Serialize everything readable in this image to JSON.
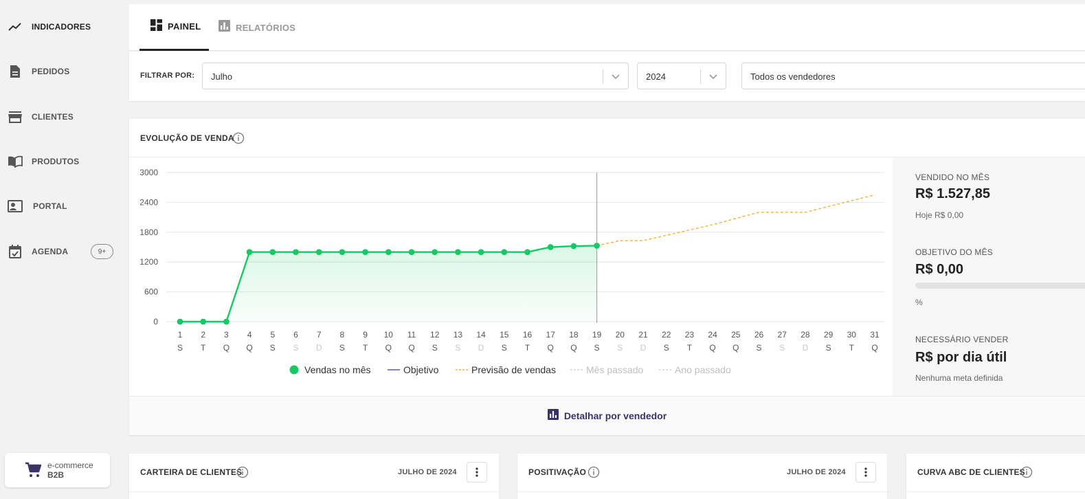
{
  "sidebar": {
    "items": [
      {
        "label": "INDICADORES",
        "icon": "trend-line-icon",
        "active": true
      },
      {
        "label": "PEDIDOS",
        "icon": "document-icon"
      },
      {
        "label": "CLIENTES",
        "icon": "store-icon"
      },
      {
        "label": "PRODUTOS",
        "icon": "book-icon"
      },
      {
        "label": "PORTAL",
        "icon": "contact-card-icon"
      },
      {
        "label": "AGENDA",
        "icon": "calendar-check-icon",
        "badge": "9+"
      }
    ],
    "ecommerce": {
      "line1": "e-commerce",
      "line2": "B2B"
    }
  },
  "tabs": [
    {
      "label": "PAINEL",
      "active": true
    },
    {
      "label": "RELATÓRIOS",
      "active": false
    }
  ],
  "filters": {
    "label": "FILTRAR POR:",
    "month": "Julho",
    "year": "2024",
    "seller": "Todos os vendedores"
  },
  "chart_section": {
    "title": "EVOLUÇÃO DE VENDA",
    "legend": [
      "Vendas no mês",
      "Objetivo",
      "Previsão de vendas",
      "Mês passado",
      "Ano passado"
    ],
    "detail_label": "Detalhar por vendedor"
  },
  "stats": {
    "sold_label": "VENDIDO NO MÊS",
    "sold_value": "R$ 1.527,85",
    "today": "Hoje R$ 0,00",
    "goal_label": "OBJETIVO DO MÊS",
    "goal_value": "R$ 0,00",
    "goal_percent_text": "%",
    "goal_progress": 0,
    "need_label": "NECESSÁRIO VENDER",
    "need_value": "R$ por dia útil",
    "need_sub": "Nenhuma meta definida"
  },
  "cards": [
    {
      "title": "CARTEIRA DE CLIENTES",
      "date": "JULHO DE 2024"
    },
    {
      "title": "POSITIVAÇÃO",
      "date": "JULHO DE 2024"
    },
    {
      "title": "CURVA ABC DE CLIENTES"
    }
  ],
  "colors": {
    "sales": "#17c964",
    "forecast": "#f5a623",
    "objective": "#3b3b9a",
    "past": "#cccccc",
    "accent": "#3b3366"
  },
  "chart_data": {
    "type": "line",
    "days": [
      "1",
      "2",
      "3",
      "4",
      "5",
      "6",
      "7",
      "8",
      "9",
      "10",
      "11",
      "12",
      "13",
      "14",
      "15",
      "16",
      "17",
      "18",
      "19",
      "20",
      "21",
      "22",
      "23",
      "24",
      "25",
      "26",
      "27",
      "28",
      "29",
      "30",
      "31"
    ],
    "weekdays": [
      "S",
      "T",
      "Q",
      "Q",
      "S",
      "S",
      "D",
      "S",
      "T",
      "Q",
      "Q",
      "S",
      "S",
      "D",
      "S",
      "T",
      "Q",
      "Q",
      "S",
      "S",
      "D",
      "S",
      "T",
      "Q",
      "Q",
      "S",
      "S",
      "D",
      "S",
      "T",
      "Q"
    ],
    "yticks": [
      0,
      600,
      1200,
      1800,
      2400,
      3000
    ],
    "ylim": [
      0,
      3000
    ],
    "today_day": 19,
    "series": [
      {
        "name": "Vendas no mês",
        "x": [
          1,
          2,
          3,
          4,
          5,
          6,
          7,
          8,
          9,
          10,
          11,
          12,
          13,
          14,
          15,
          16,
          17,
          18,
          19
        ],
        "values": [
          0,
          0,
          0,
          1400,
          1400,
          1400,
          1400,
          1400,
          1400,
          1400,
          1400,
          1400,
          1400,
          1400,
          1400,
          1400,
          1500,
          1520,
          1528
        ]
      },
      {
        "name": "Previsão de vendas",
        "x": [
          19,
          20,
          21,
          24,
          26,
          28,
          31
        ],
        "values": [
          1528,
          1630,
          1630,
          1950,
          2200,
          2200,
          2550
        ]
      }
    ]
  }
}
